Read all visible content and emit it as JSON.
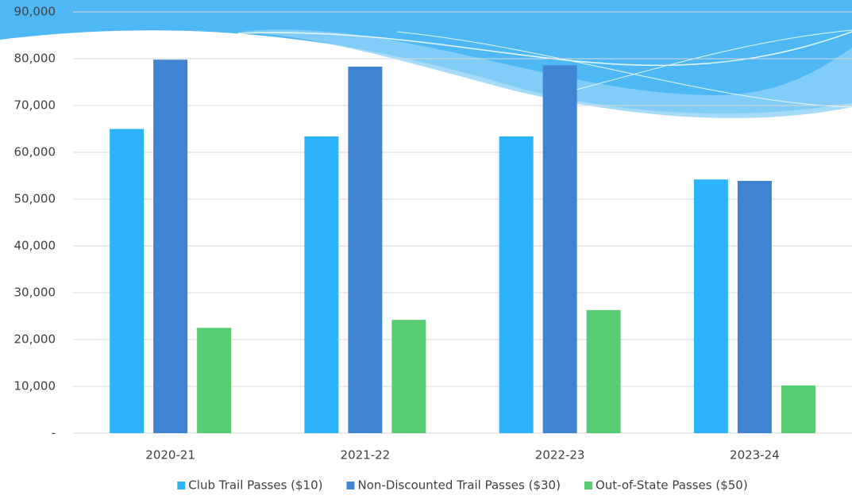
{
  "chart_data": {
    "type": "bar",
    "categories": [
      "2020-21",
      "2021-22",
      "2022-23",
      "2023-24"
    ],
    "series": [
      {
        "name": "Club Trail Passes ($10)",
        "color": "#2db3f9",
        "values": [
          65000,
          63400,
          63400,
          54200
        ]
      },
      {
        "name": "Non-Discounted Trail Passes ($30)",
        "color": "#4184d4",
        "values": [
          79800,
          78300,
          78600,
          53900
        ]
      },
      {
        "name": "Out-of-State Passes ($50)",
        "color": "#57cd72",
        "values": [
          22500,
          24200,
          26300,
          10200
        ]
      }
    ],
    "ylim": [
      0,
      90000
    ],
    "yticks": [
      {
        "value": 0,
        "label": "-"
      },
      {
        "value": 10000,
        "label": "10,000"
      },
      {
        "value": 20000,
        "label": "20,000"
      },
      {
        "value": 30000,
        "label": "30,000"
      },
      {
        "value": 40000,
        "label": "40,000"
      },
      {
        "value": 50000,
        "label": "50,000"
      },
      {
        "value": 60000,
        "label": "60,000"
      },
      {
        "value": 70000,
        "label": "70,000"
      },
      {
        "value": 80000,
        "label": "80,000"
      },
      {
        "value": 90000,
        "label": "90,000"
      }
    ],
    "grid": true,
    "legend": "bottom"
  }
}
